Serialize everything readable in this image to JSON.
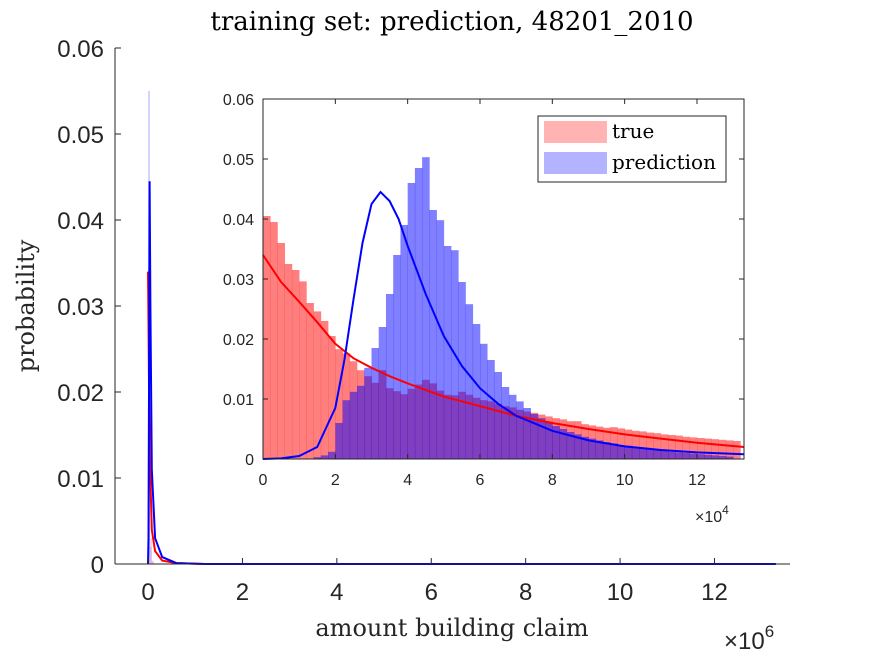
{
  "chart_data": [
    {
      "name": "main",
      "type": "histogram",
      "title": "training set: prediction, 48201_2010",
      "xlabel": "amount building claim",
      "ylabel": "probability",
      "x_exponent_label": "×10",
      "x_exponent": "6",
      "xlim": [
        -0.7,
        13.6
      ],
      "ylim": [
        0,
        0.06
      ],
      "xticks": [
        0,
        2,
        4,
        6,
        8,
        10,
        12
      ],
      "yticks": [
        0,
        0.01,
        0.02,
        0.03,
        0.04,
        0.05,
        0.06
      ],
      "xtick_labels": [
        "0",
        "2",
        "4",
        "6",
        "8",
        "10",
        "12"
      ],
      "ytick_labels": [
        "0",
        "0.01",
        "0.02",
        "0.03",
        "0.04",
        "0.05",
        "0.06"
      ],
      "series": [
        {
          "name": "true",
          "kind": "bars",
          "color": "#ff9999",
          "x": [
            0.0,
            0.04,
            0.08
          ],
          "values": [
            0.0345,
            0.003,
            0.0004
          ]
        },
        {
          "name": "prediction",
          "kind": "bars",
          "color": "#9999ff",
          "x": [
            0.0,
            0.04,
            0.08
          ],
          "values": [
            0.055,
            0.002,
            0.0002
          ]
        },
        {
          "name": "true fit",
          "kind": "line",
          "color": "#ff0000",
          "x": [
            0,
            0.01,
            0.02,
            0.04,
            0.08,
            0.15,
            0.3,
            0.6,
            1.2,
            13.3
          ],
          "values": [
            0.034,
            0.028,
            0.021,
            0.012,
            0.004,
            0.0015,
            0.0004,
            0.0001,
            0.0,
            0.0
          ]
        },
        {
          "name": "prediction fit",
          "kind": "line",
          "color": "#0000ff",
          "x": [
            0,
            0.01,
            0.02,
            0.033,
            0.05,
            0.08,
            0.15,
            0.3,
            0.6,
            1.2,
            13.3
          ],
          "values": [
            0.0,
            0.003,
            0.02,
            0.0445,
            0.03,
            0.011,
            0.003,
            0.0008,
            0.0001,
            0.0,
            0.0
          ]
        }
      ]
    },
    {
      "name": "inset",
      "type": "histogram",
      "x_exponent_label": "×10",
      "x_exponent": "4",
      "xlim": [
        0,
        13.3
      ],
      "ylim": [
        0,
        0.06
      ],
      "xticks": [
        0,
        2,
        4,
        6,
        8,
        10,
        12
      ],
      "yticks": [
        0,
        0.01,
        0.02,
        0.03,
        0.04,
        0.05,
        0.06
      ],
      "xtick_labels": [
        "0",
        "2",
        "4",
        "6",
        "8",
        "10",
        "12"
      ],
      "ytick_labels": [
        "0",
        "0.01",
        "0.02",
        "0.03",
        "0.04",
        "0.05",
        "0.06"
      ],
      "legend": {
        "location": "top-right",
        "entries": [
          {
            "label": "true",
            "color": "#ff9999"
          },
          {
            "label": "prediction",
            "color": "#9999ff"
          }
        ]
      },
      "bin_width": 0.2,
      "true_hist": {
        "x_start": 0.0,
        "values": [
          0.0405,
          0.0395,
          0.036,
          0.0325,
          0.0315,
          0.0296,
          0.026,
          0.0246,
          0.023,
          0.0205,
          0.0183,
          0.0176,
          0.0163,
          0.0148,
          0.0138,
          0.0127,
          0.0148,
          0.0118,
          0.0113,
          0.0108,
          0.0117,
          0.0124,
          0.0132,
          0.0126,
          0.0114,
          0.0107,
          0.0106,
          0.0112,
          0.0107,
          0.0102,
          0.0098,
          0.0096,
          0.0092,
          0.0088,
          0.0086,
          0.0082,
          0.0079,
          0.0077,
          0.0074,
          0.0071,
          0.0068,
          0.0066,
          0.0063,
          0.0063,
          0.0058,
          0.0056,
          0.0054,
          0.0052,
          0.0053,
          0.0051,
          0.0049,
          0.0047,
          0.0046,
          0.0044,
          0.0043,
          0.0041,
          0.004,
          0.0039,
          0.0037,
          0.0036,
          0.0035,
          0.0034,
          0.0033,
          0.0032,
          0.0031,
          0.003
        ]
      },
      "prediction_hist": {
        "x_start": 1.4,
        "values": [
          0.0003,
          0.0006,
          0.0012,
          0.006,
          0.0098,
          0.0112,
          0.0122,
          0.0152,
          0.0185,
          0.022,
          0.0275,
          0.034,
          0.039,
          0.046,
          0.0485,
          0.0503,
          0.0415,
          0.0398,
          0.0355,
          0.0348,
          0.0295,
          0.0258,
          0.0225,
          0.0192,
          0.0165,
          0.0145,
          0.012,
          0.0107,
          0.0096,
          0.0085,
          0.0075,
          0.0068,
          0.0062,
          0.0055,
          0.005,
          0.0045,
          0.0041,
          0.0037,
          0.0034,
          0.0031,
          0.0028,
          0.0026,
          0.0023,
          0.0022,
          0.002,
          0.0018,
          0.0016,
          0.0015,
          0.0014,
          0.0012,
          0.0011,
          0.001,
          0.0009,
          0.0008,
          0.0007,
          0.0006,
          0.0005,
          0.0004
        ]
      },
      "true_fit": {
        "x": [
          0,
          0.5,
          1,
          1.5,
          2,
          2.5,
          3,
          3.5,
          4,
          5,
          6,
          7,
          8,
          9,
          10,
          11,
          12,
          13.3
        ],
        "values": [
          0.034,
          0.0295,
          0.0262,
          0.0228,
          0.0192,
          0.0168,
          0.0152,
          0.0138,
          0.0126,
          0.0104,
          0.0088,
          0.0072,
          0.006,
          0.005,
          0.0041,
          0.0034,
          0.0027,
          0.002
        ]
      },
      "prediction_fit": {
        "x": [
          0,
          0.5,
          1,
          1.5,
          2,
          2.25,
          2.5,
          2.75,
          3,
          3.25,
          3.5,
          3.75,
          4,
          4.5,
          5,
          5.5,
          6,
          6.5,
          7,
          8,
          9,
          10,
          11,
          12,
          13.3
        ],
        "values": [
          0,
          0.0001,
          0.0005,
          0.002,
          0.0085,
          0.0165,
          0.0265,
          0.036,
          0.0425,
          0.0445,
          0.043,
          0.04,
          0.0355,
          0.0275,
          0.0205,
          0.0155,
          0.0118,
          0.0092,
          0.0072,
          0.0047,
          0.0031,
          0.0021,
          0.0015,
          0.0011,
          0.0008
        ]
      }
    }
  ]
}
